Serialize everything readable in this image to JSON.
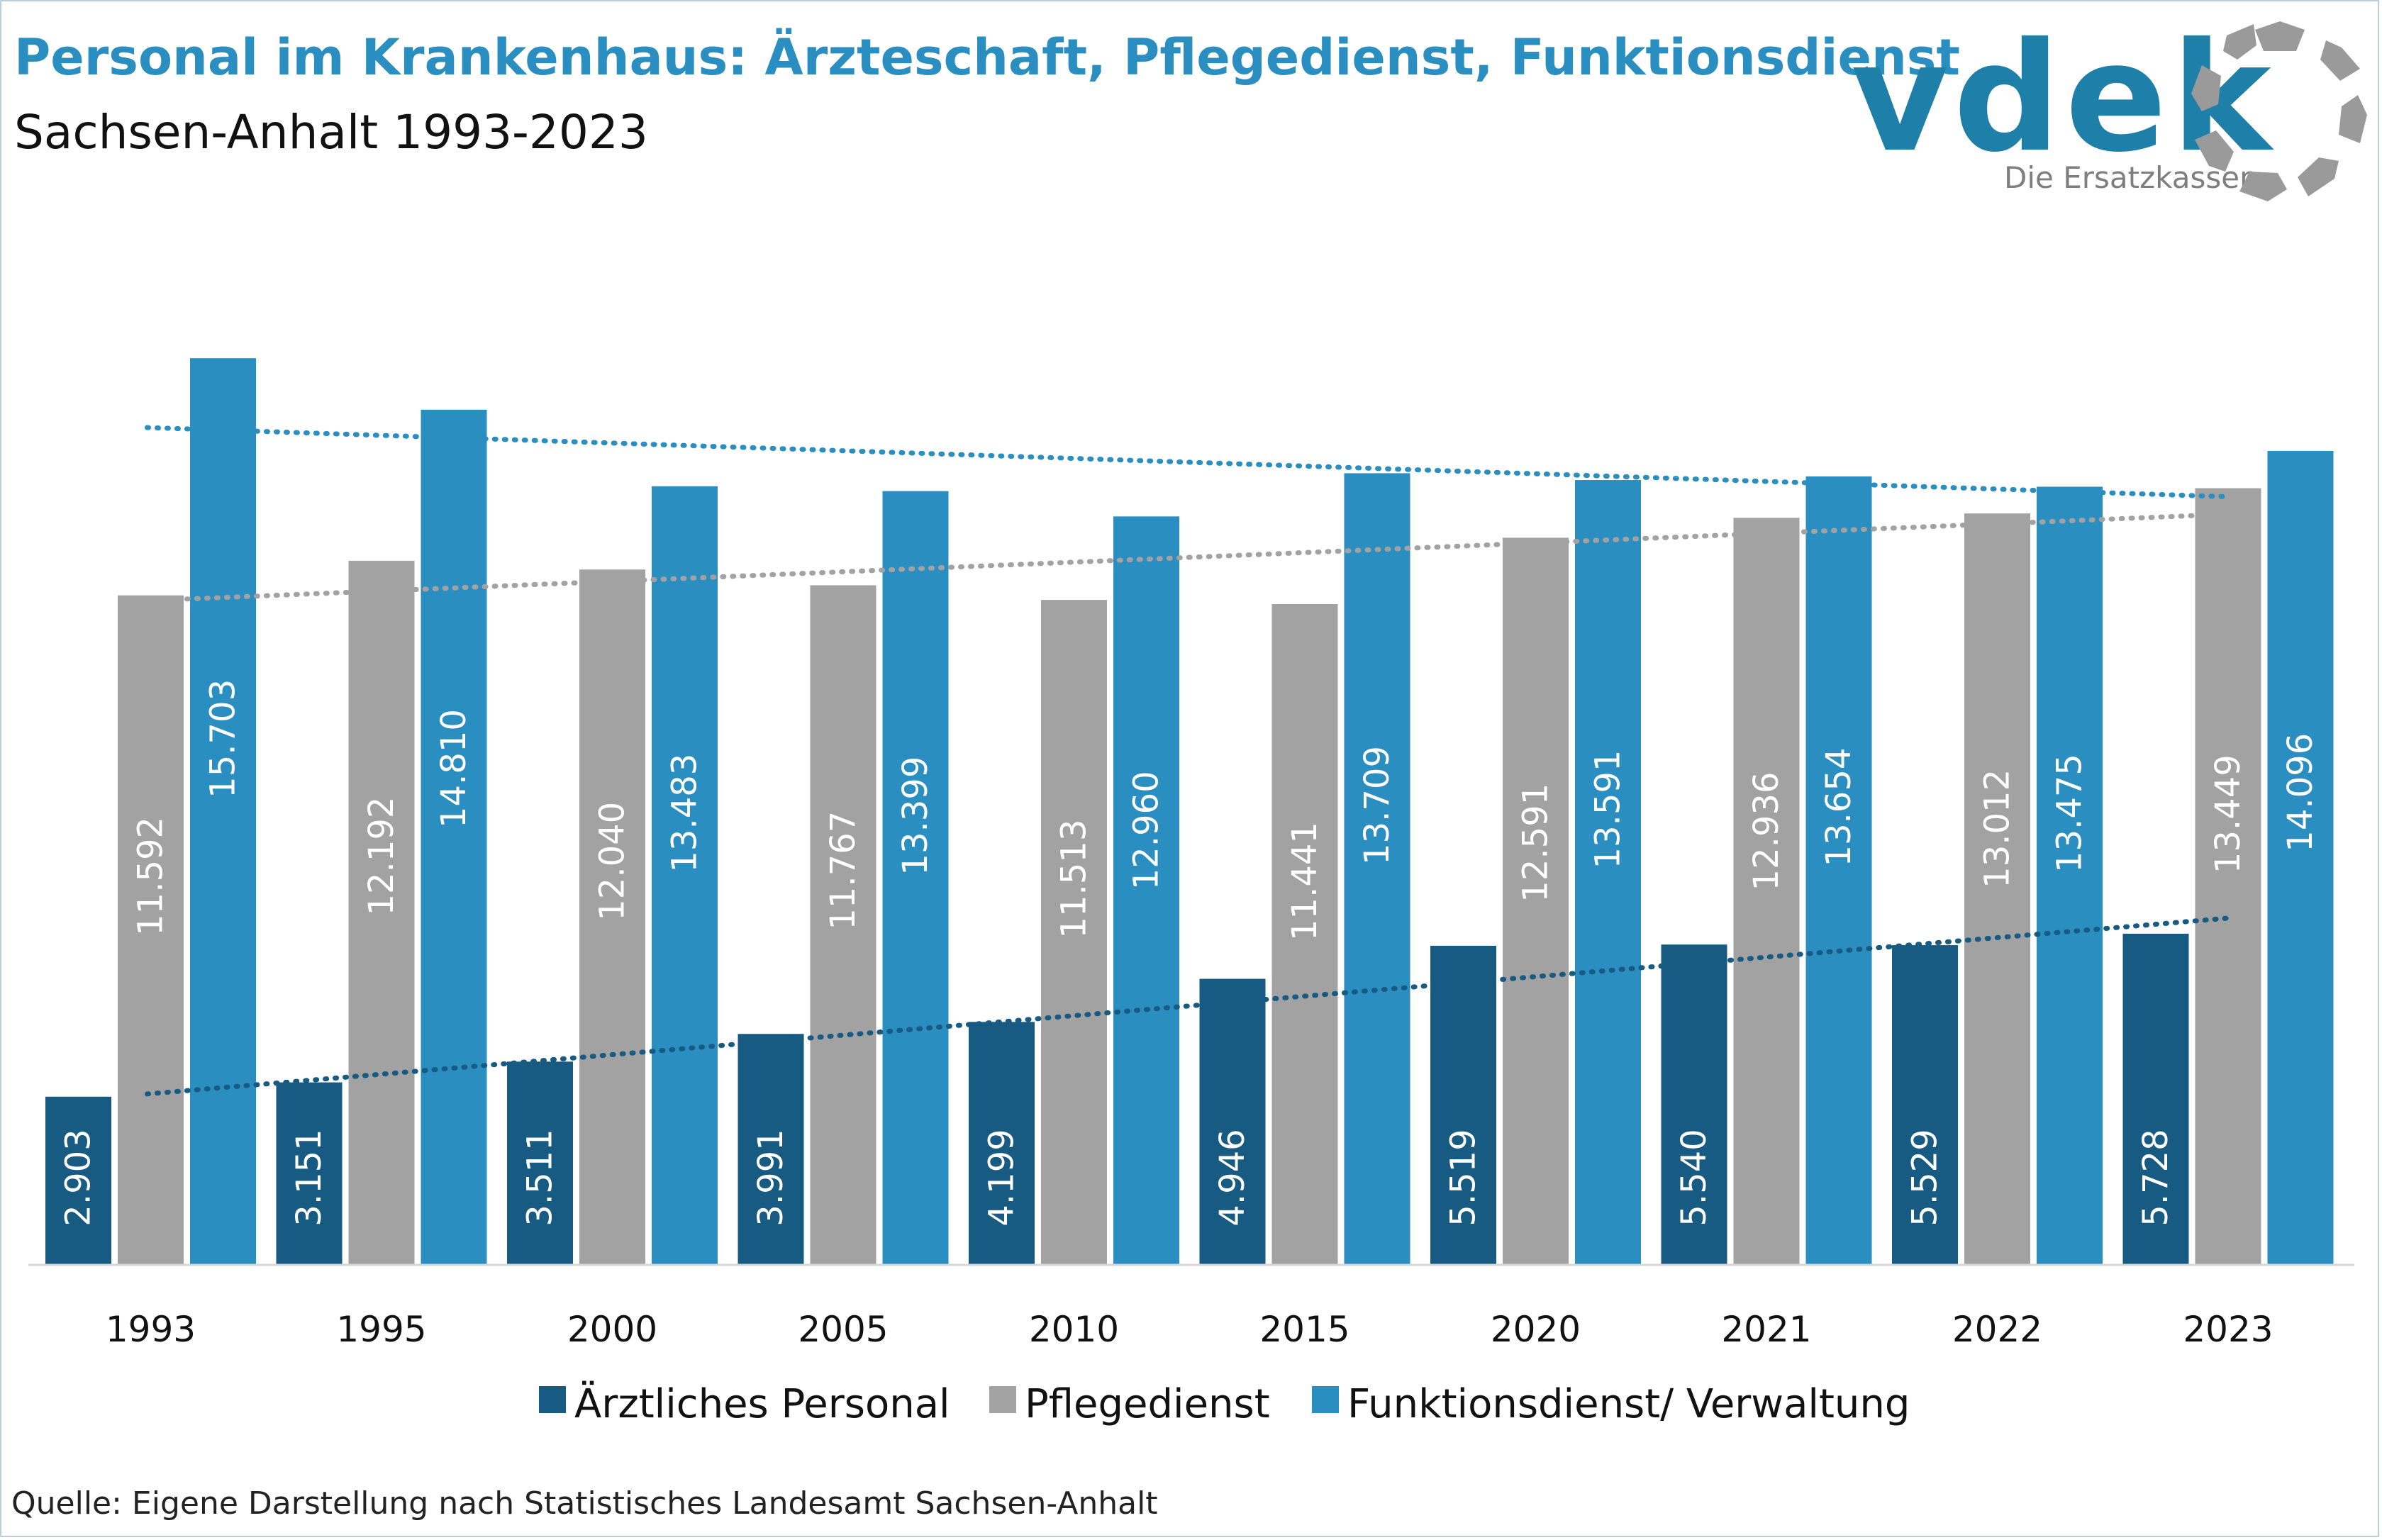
{
  "header": {
    "title": "Personal im Krankenhaus: Ärzteschaft, Pflegedienst, Funktionsdienst",
    "subtitle": "Sachsen-Anhalt 1993-2023"
  },
  "logo": {
    "wordmark": "vdek",
    "tagline": "Die Ersatzkassen"
  },
  "source": "Quelle: Eigene Darstellung nach Statistisches Landesamt Sachsen-Anhalt",
  "chart_data": {
    "type": "bar",
    "categories": [
      "1993",
      "1995",
      "2000",
      "2005",
      "2010",
      "2015",
      "2020",
      "2021",
      "2022",
      "2023"
    ],
    "series": [
      {
        "name": "Ärztliches Personal",
        "color": "#175a82",
        "values": [
          2903,
          3151,
          3511,
          3991,
          4199,
          4946,
          5519,
          5540,
          5529,
          5728
        ],
        "labels": [
          "2.903",
          "3.151",
          "3.511",
          "3.991",
          "4.199",
          "4.946",
          "5.519",
          "5.540",
          "5.529",
          "5.728"
        ]
      },
      {
        "name": "Pflegedienst",
        "color": "#a2a2a2",
        "values": [
          11592,
          12192,
          12040,
          11767,
          11513,
          11441,
          12591,
          12936,
          13012,
          13449
        ],
        "labels": [
          "11.592",
          "12.192",
          "12.040",
          "11.767",
          "11.513",
          "11.441",
          "12.591",
          "12.936",
          "13.012",
          "13.449"
        ]
      },
      {
        "name": "Funktionsdienst/ Verwaltung",
        "color": "#2a8fc0",
        "values": [
          15703,
          14810,
          13483,
          13399,
          12960,
          13709,
          13591,
          13654,
          13475,
          14096
        ],
        "labels": [
          "15.703",
          "14.810",
          "13.483",
          "13.399",
          "12.960",
          "13.709",
          "13.591",
          "13.654",
          "13.475",
          "14.096"
        ]
      }
    ],
    "trendlines": [
      {
        "series": "Ärztliches Personal",
        "style": "dotted",
        "color": "#175a82",
        "start": 2950,
        "end": 6000
      },
      {
        "series": "Pflegedienst",
        "style": "dotted",
        "color": "#a2a2a2",
        "start": 11500,
        "end": 13000
      },
      {
        "series": "Funktionsdienst/ Verwaltung",
        "style": "dotted",
        "color": "#2a8fc0",
        "start": 14500,
        "end": 13300
      }
    ],
    "ylim": [
      0,
      16000
    ],
    "xlabel": "",
    "ylabel": "",
    "grid": false,
    "legend": "bottom"
  }
}
